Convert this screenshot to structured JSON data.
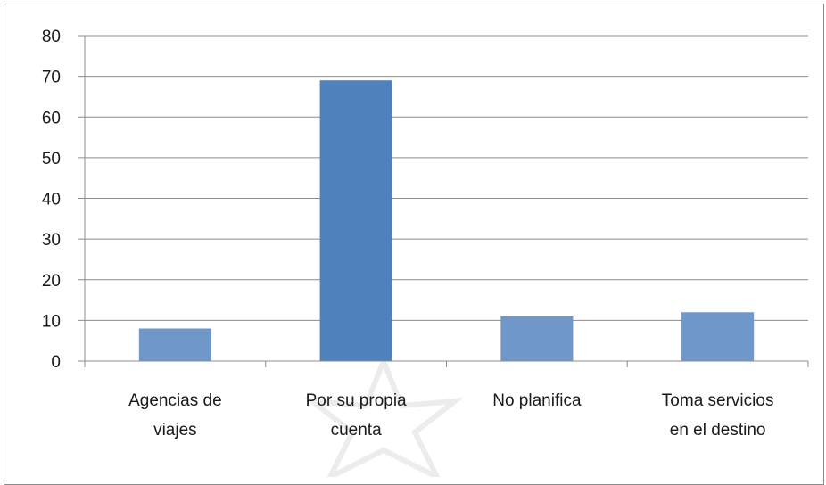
{
  "chart_data": {
    "type": "bar",
    "title": "",
    "xlabel": "",
    "ylabel": "",
    "ylim": [
      0,
      80
    ],
    "yticks": [
      0,
      10,
      20,
      30,
      40,
      50,
      60,
      70,
      80
    ],
    "grid": true,
    "legend": "none",
    "categories": [
      [
        "Agencias de",
        "viajes"
      ],
      [
        "Por su propia",
        "cuenta"
      ],
      [
        "No planifica"
      ],
      [
        "Toma servicios",
        "en el destino"
      ]
    ],
    "values": [
      8,
      69,
      11,
      12
    ],
    "colors": {
      "bar_main": "#4f81bd",
      "bar_light": "#6f97c9",
      "grid": "#8c8c8c",
      "axis": "#8c8c8c"
    }
  }
}
